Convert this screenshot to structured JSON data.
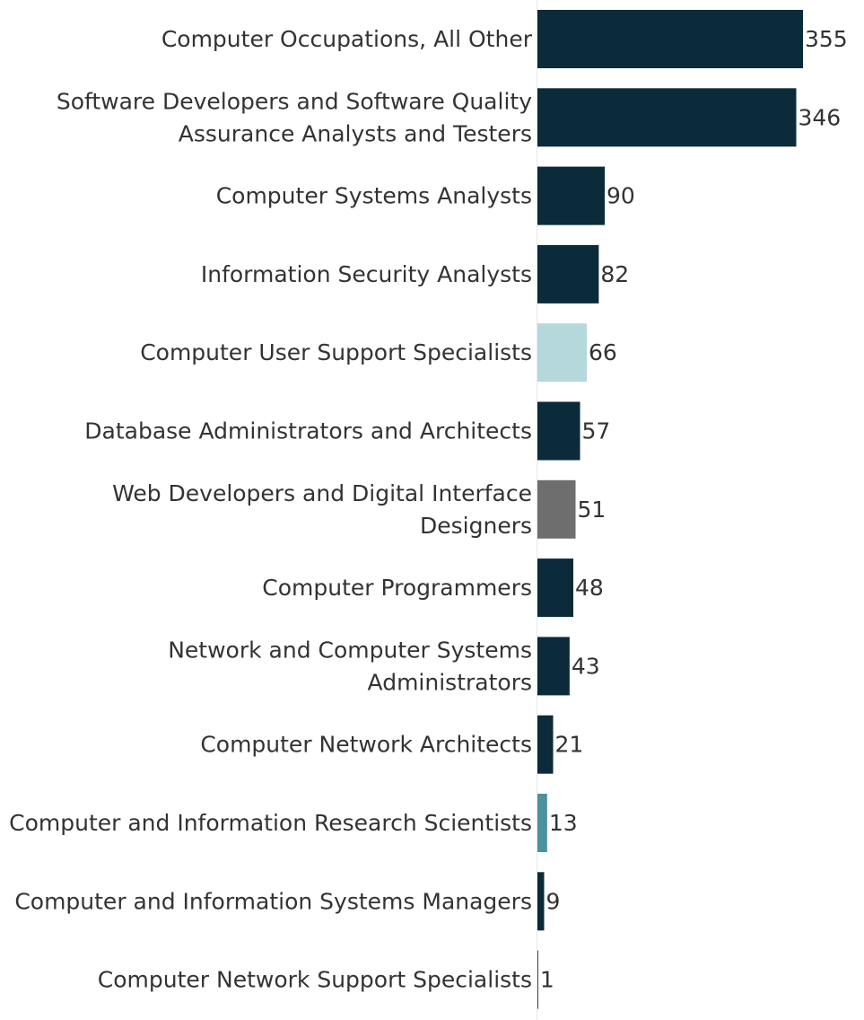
{
  "chart_data": {
    "type": "bar",
    "orientation": "horizontal",
    "categories": [
      [
        "Computer Occupations, All Other"
      ],
      [
        "Software Developers and Software Quality",
        "Assurance Analysts and Testers"
      ],
      [
        "Computer Systems Analysts"
      ],
      [
        "Information Security Analysts"
      ],
      [
        "Computer User Support Specialists"
      ],
      [
        "Database Administrators and Architects"
      ],
      [
        "Web Developers and Digital Interface",
        "Designers"
      ],
      [
        "Computer Programmers"
      ],
      [
        "Network and Computer Systems",
        "Administrators"
      ],
      [
        "Computer Network Architects"
      ],
      [
        "Computer and Information Research Scientists"
      ],
      [
        "Computer and Information Systems Managers"
      ],
      [
        "Computer Network Support Specialists"
      ]
    ],
    "values": [
      355,
      346,
      90,
      82,
      66,
      57,
      51,
      48,
      43,
      21,
      13,
      9,
      1
    ],
    "value_labels": [
      "355",
      "346",
      "90",
      "82",
      "66",
      "57",
      "51",
      "48",
      "43",
      "21",
      "13",
      "9",
      "1"
    ],
    "colors": [
      "#0b2a3a",
      "#0b2a3a",
      "#0b2a3a",
      "#0b2a3a",
      "#b5d8dc",
      "#0b2a3a",
      "#6e6e6e",
      "#0b2a3a",
      "#0b2a3a",
      "#0b2a3a",
      "#4a929e",
      "#0b2a3a",
      "#0b2a3a"
    ],
    "title": "",
    "xlabel": "",
    "ylabel": "",
    "xlim": [
      0,
      355
    ],
    "grid": false,
    "legend": "none"
  }
}
